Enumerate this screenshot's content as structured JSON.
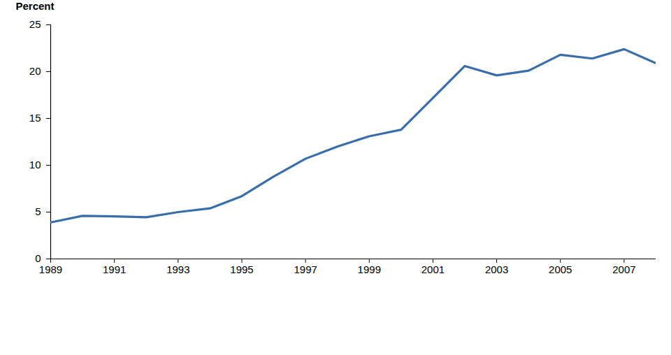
{
  "chart_data": {
    "type": "line",
    "ylabel": "Percent",
    "x": [
      1989,
      1990,
      1991,
      1992,
      1993,
      1994,
      1995,
      1996,
      1997,
      1998,
      1999,
      2000,
      2001,
      2002,
      2003,
      2004,
      2005,
      2006,
      2007,
      2008
    ],
    "values": [
      3.9,
      4.6,
      4.55,
      4.45,
      5.0,
      5.4,
      6.7,
      8.8,
      10.7,
      12.0,
      13.1,
      13.8,
      17.2,
      20.6,
      19.6,
      20.1,
      21.8,
      21.4,
      22.4,
      20.9
    ],
    "color": "#3a6ea8",
    "line_style": "solid",
    "marker": "none",
    "grid": false,
    "xlim": [
      1989,
      2008
    ],
    "xticks": [
      1989,
      1991,
      1993,
      1995,
      1997,
      1999,
      2001,
      2003,
      2005,
      2007
    ],
    "ylim": [
      0,
      25
    ],
    "yticks": [
      0,
      5,
      10,
      15,
      20,
      25
    ]
  }
}
